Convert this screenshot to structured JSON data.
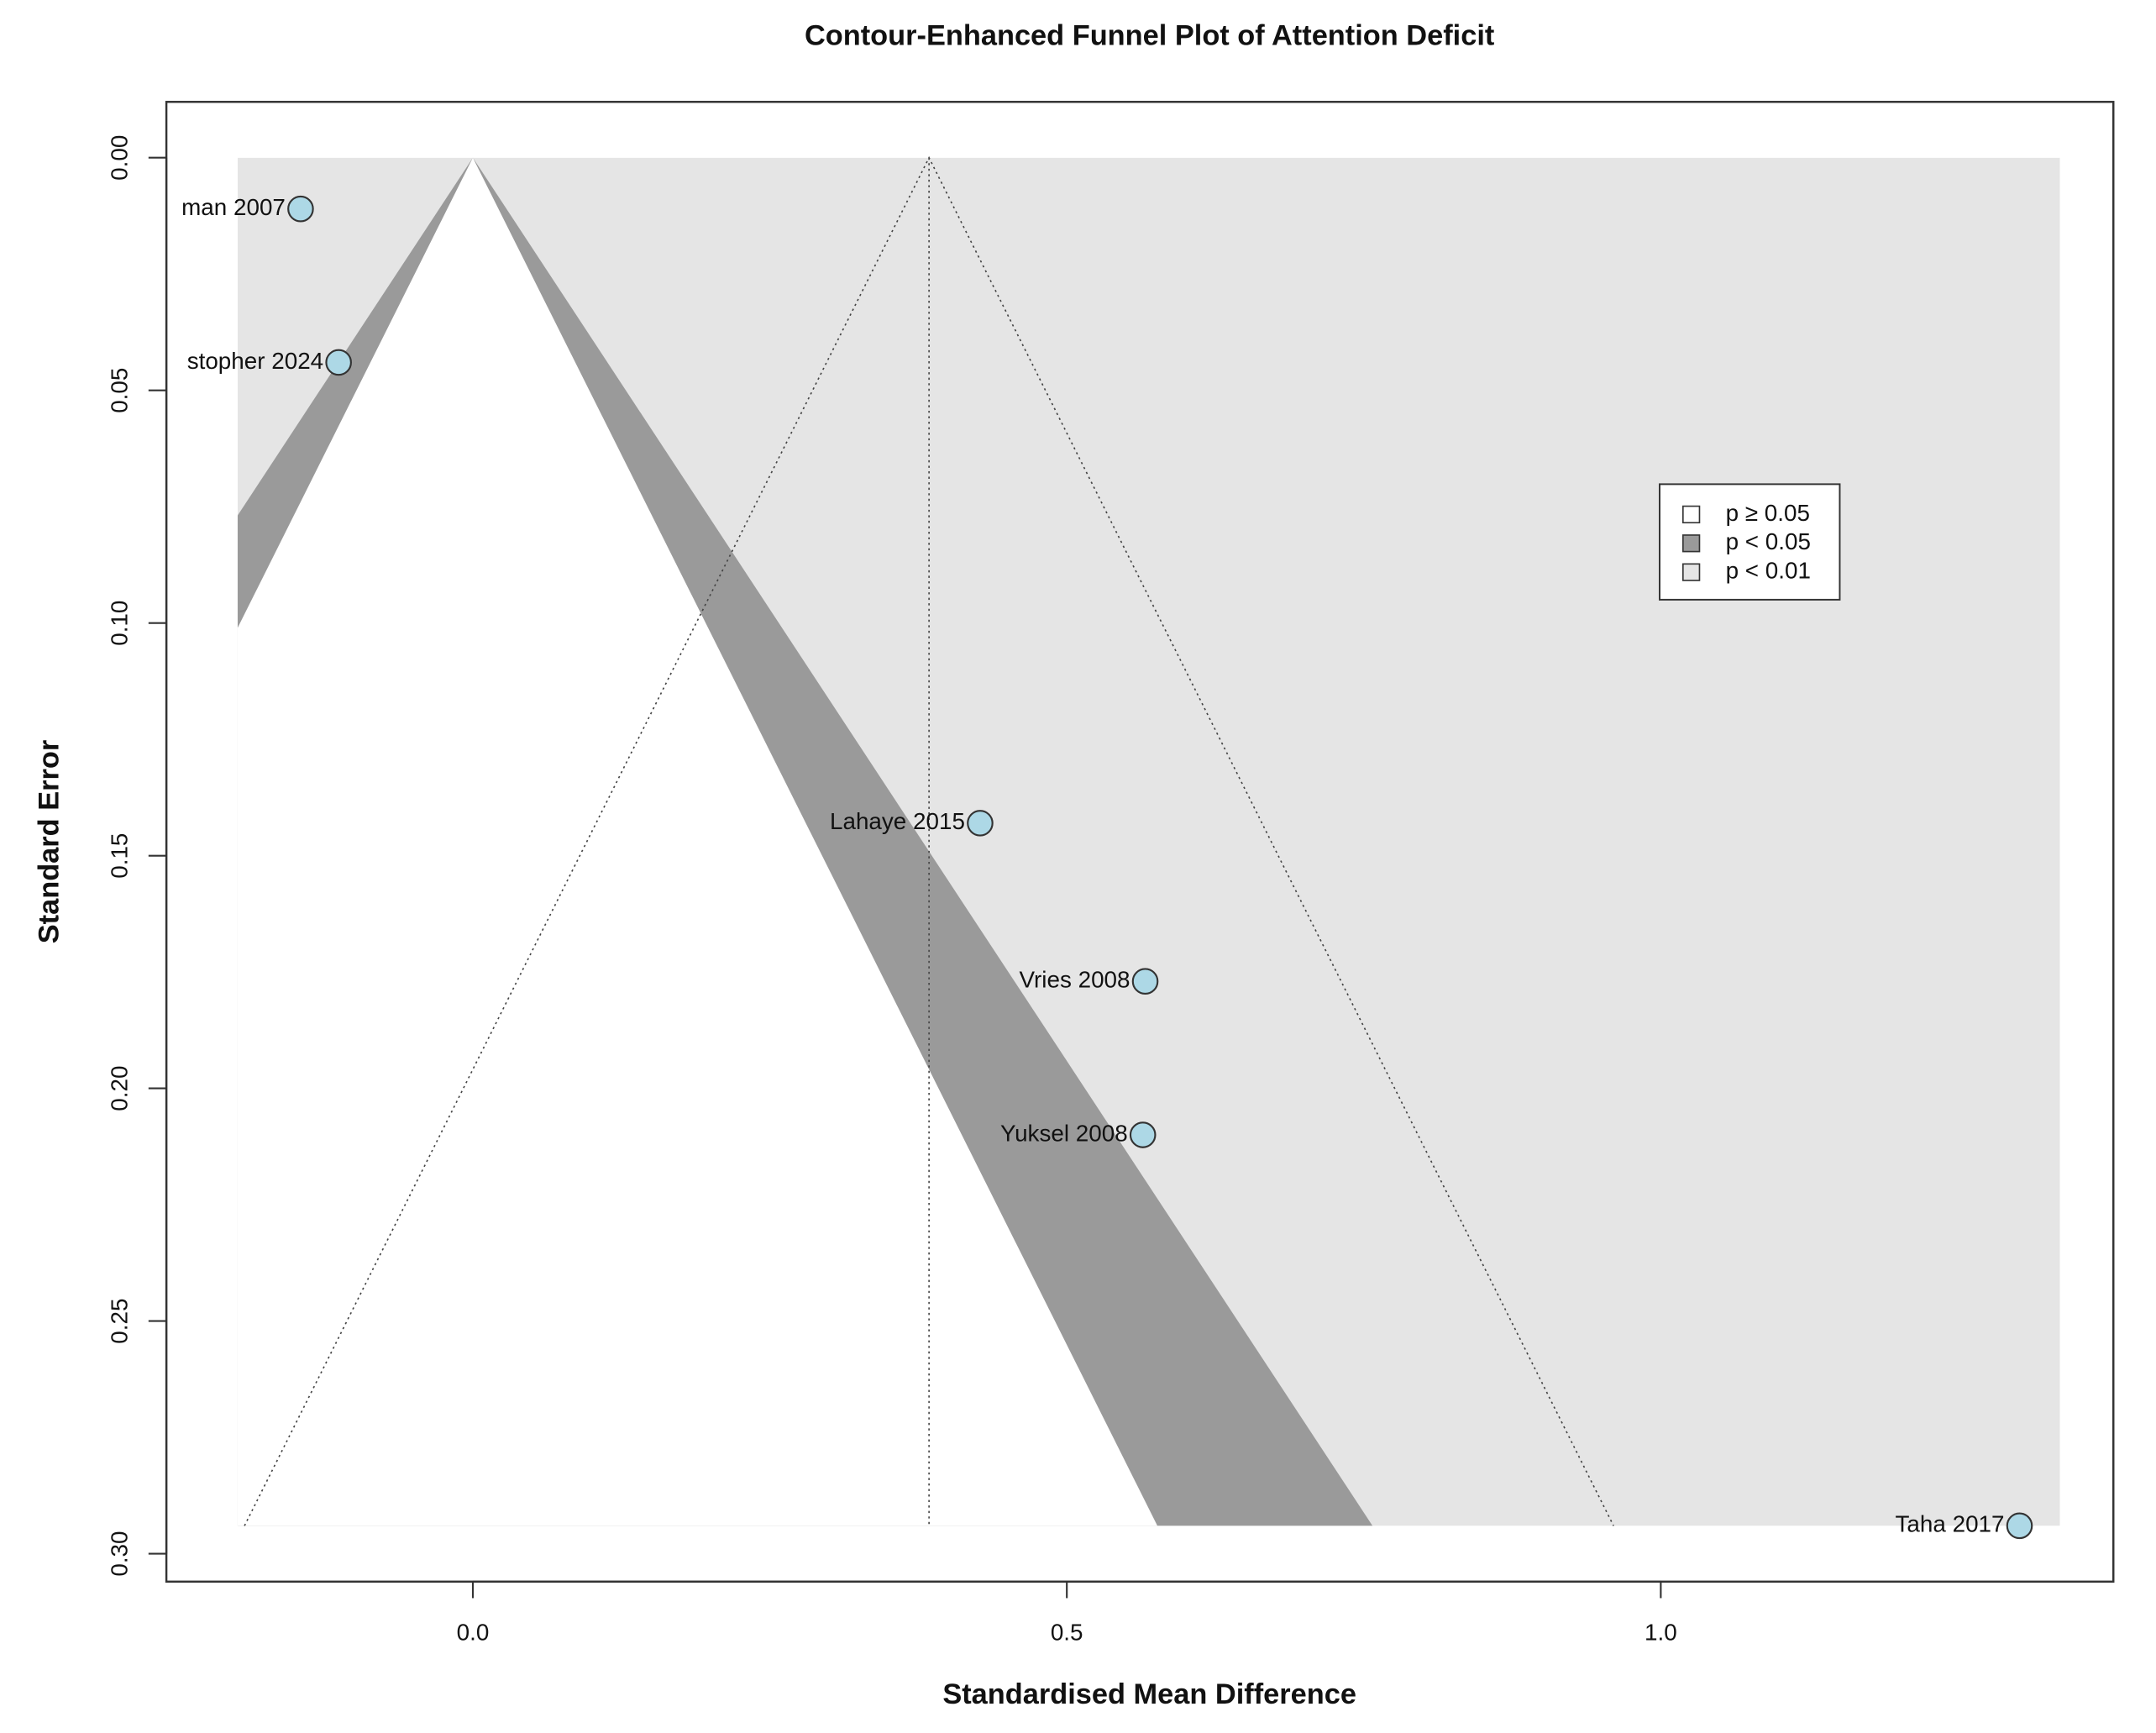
{
  "chart_data": {
    "type": "funnel",
    "title": "Contour-Enhanced Funnel Plot of Attention Deficit",
    "x_label": "Standardised Mean Difference",
    "y_label": "Standard Error",
    "labels": [
      "man 2007",
      "stopher 2024",
      "Lahaye 2015",
      "Vries 2008",
      "Yuksel 2008",
      "Taha 2017"
    ],
    "x": [
      -0.145,
      -0.113,
      0.427,
      0.566,
      0.564,
      1.302
    ],
    "values": [
      0.011,
      0.044,
      0.143,
      0.177,
      0.21,
      0.294
    ],
    "point_color": "#add8e6",
    "pooled_estimate": 0.384,
    "funnel_z": 1.96,
    "contour_z": [
      1.96,
      2.576
    ],
    "shade_xlim": [
      -0.198,
      1.336
    ],
    "xlim": [
      -0.258,
      1.381
    ],
    "ylim": [
      -0.012,
      0.306
    ],
    "y_reversed": true,
    "xticks": [
      {
        "value": 0,
        "label": "0.0"
      },
      0.5,
      {
        "value": 1,
        "label": "1.0"
      }
    ],
    "yticks": [
      {
        "value": 0,
        "label": "0.00"
      },
      0.05,
      {
        "value": 0.1,
        "label": "0.10"
      },
      0.15,
      {
        "value": 0.2,
        "label": "0.20"
      },
      0.25,
      {
        "value": 0.3,
        "label": "0.30"
      }
    ],
    "legend": [
      {
        "label": "p ≥ 0.05",
        "color": "#ffffff"
      },
      {
        "label": "p < 0.05",
        "color": "#9a9a9a"
      },
      {
        "label": "p < 0.01",
        "color": "#e5e5e5"
      }
    ],
    "legend_position": "right"
  }
}
